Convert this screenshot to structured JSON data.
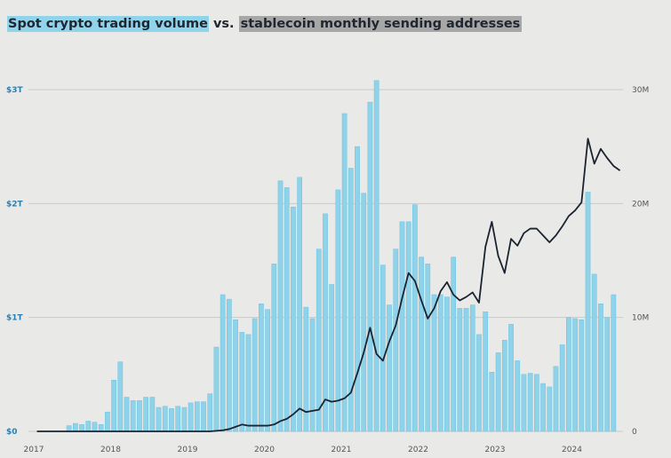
{
  "title": {
    "part1": "Spot crypto trading volume",
    "connector": "vs.",
    "part2": "stablecoin monthly sending addresses"
  },
  "colors": {
    "bars": "#8fd3ea",
    "bar_edge": "#6cc2df",
    "line": "#1b2230",
    "grid": "#c9c9c9",
    "background": "#e9e9e7"
  },
  "chart_data": {
    "type": "bar",
    "x_ticks": [
      "2017",
      "2018",
      "2019",
      "2020",
      "2021",
      "2022",
      "2023",
      "2024"
    ],
    "y_left": {
      "ticks": [
        "$0",
        "$1T",
        "$2T",
        "$3T"
      ],
      "range": [
        0,
        3.0
      ],
      "unit": "trillions USD"
    },
    "y_right": {
      "ticks": [
        "0",
        "10M",
        "20M",
        "30M"
      ],
      "range": [
        0,
        30
      ],
      "unit": "millions"
    },
    "grid": true,
    "start_year": 2017,
    "series": [
      {
        "type": "bar",
        "axis": "left",
        "values": [
          0.0,
          0.0,
          0.0,
          0.0,
          0.0,
          0.05,
          0.07,
          0.06,
          0.09,
          0.08,
          0.06,
          0.17,
          0.45,
          0.61,
          0.3,
          0.27,
          0.27,
          0.3,
          0.3,
          0.21,
          0.22,
          0.2,
          0.22,
          0.21,
          0.25,
          0.26,
          0.26,
          0.33,
          0.74,
          1.2,
          1.16,
          0.98,
          0.87,
          0.85,
          0.99,
          1.12,
          1.07,
          1.47,
          2.2,
          2.14,
          1.97,
          2.23,
          1.09,
          0.99,
          1.6,
          1.91,
          1.29,
          2.12,
          2.79,
          2.31,
          2.5,
          2.09,
          2.89,
          3.08,
          1.46,
          1.11,
          1.6,
          1.84,
          1.84,
          1.99,
          1.53,
          1.47,
          1.2,
          1.2,
          1.18,
          1.53,
          1.08,
          1.08,
          1.11,
          0.85,
          1.05,
          0.52,
          0.69,
          0.8,
          0.94,
          0.62,
          0.5,
          0.51,
          0.5,
          0.42,
          0.39,
          0.57,
          0.76,
          1.0,
          0.99,
          0.98,
          2.1,
          1.38,
          1.12,
          1.0,
          1.2
        ]
      },
      {
        "type": "line",
        "axis": "right",
        "values": [
          0.0,
          0.0,
          0.0,
          0.0,
          0.0,
          0.0,
          0.0,
          0.0,
          0.0,
          0.0,
          0.0,
          0.0,
          0.0,
          0.0,
          0.0,
          0.0,
          0.0,
          0.0,
          0.0,
          0.0,
          0.0,
          0.0,
          0.0,
          0.0,
          0.0,
          0.0,
          0.0,
          0.0,
          0.05,
          0.1,
          0.2,
          0.4,
          0.6,
          0.5,
          0.5,
          0.5,
          0.5,
          0.6,
          0.9,
          1.1,
          1.5,
          2.0,
          1.7,
          1.8,
          1.9,
          2.8,
          2.6,
          2.7,
          2.9,
          3.4,
          5.1,
          6.9,
          9.1,
          6.8,
          6.2,
          7.9,
          9.3,
          11.7,
          13.9,
          13.2,
          11.5,
          9.9,
          10.8,
          12.3,
          13.1,
          12.0,
          11.5,
          11.8,
          12.2,
          11.3,
          16.2,
          18.4,
          15.4,
          13.9,
          16.9,
          16.3,
          17.4,
          17.8,
          17.8,
          17.2,
          16.6,
          17.2,
          18.0,
          18.9,
          19.4,
          20.1,
          25.7,
          23.5,
          24.8,
          24.0,
          23.3,
          22.9
        ]
      }
    ]
  }
}
